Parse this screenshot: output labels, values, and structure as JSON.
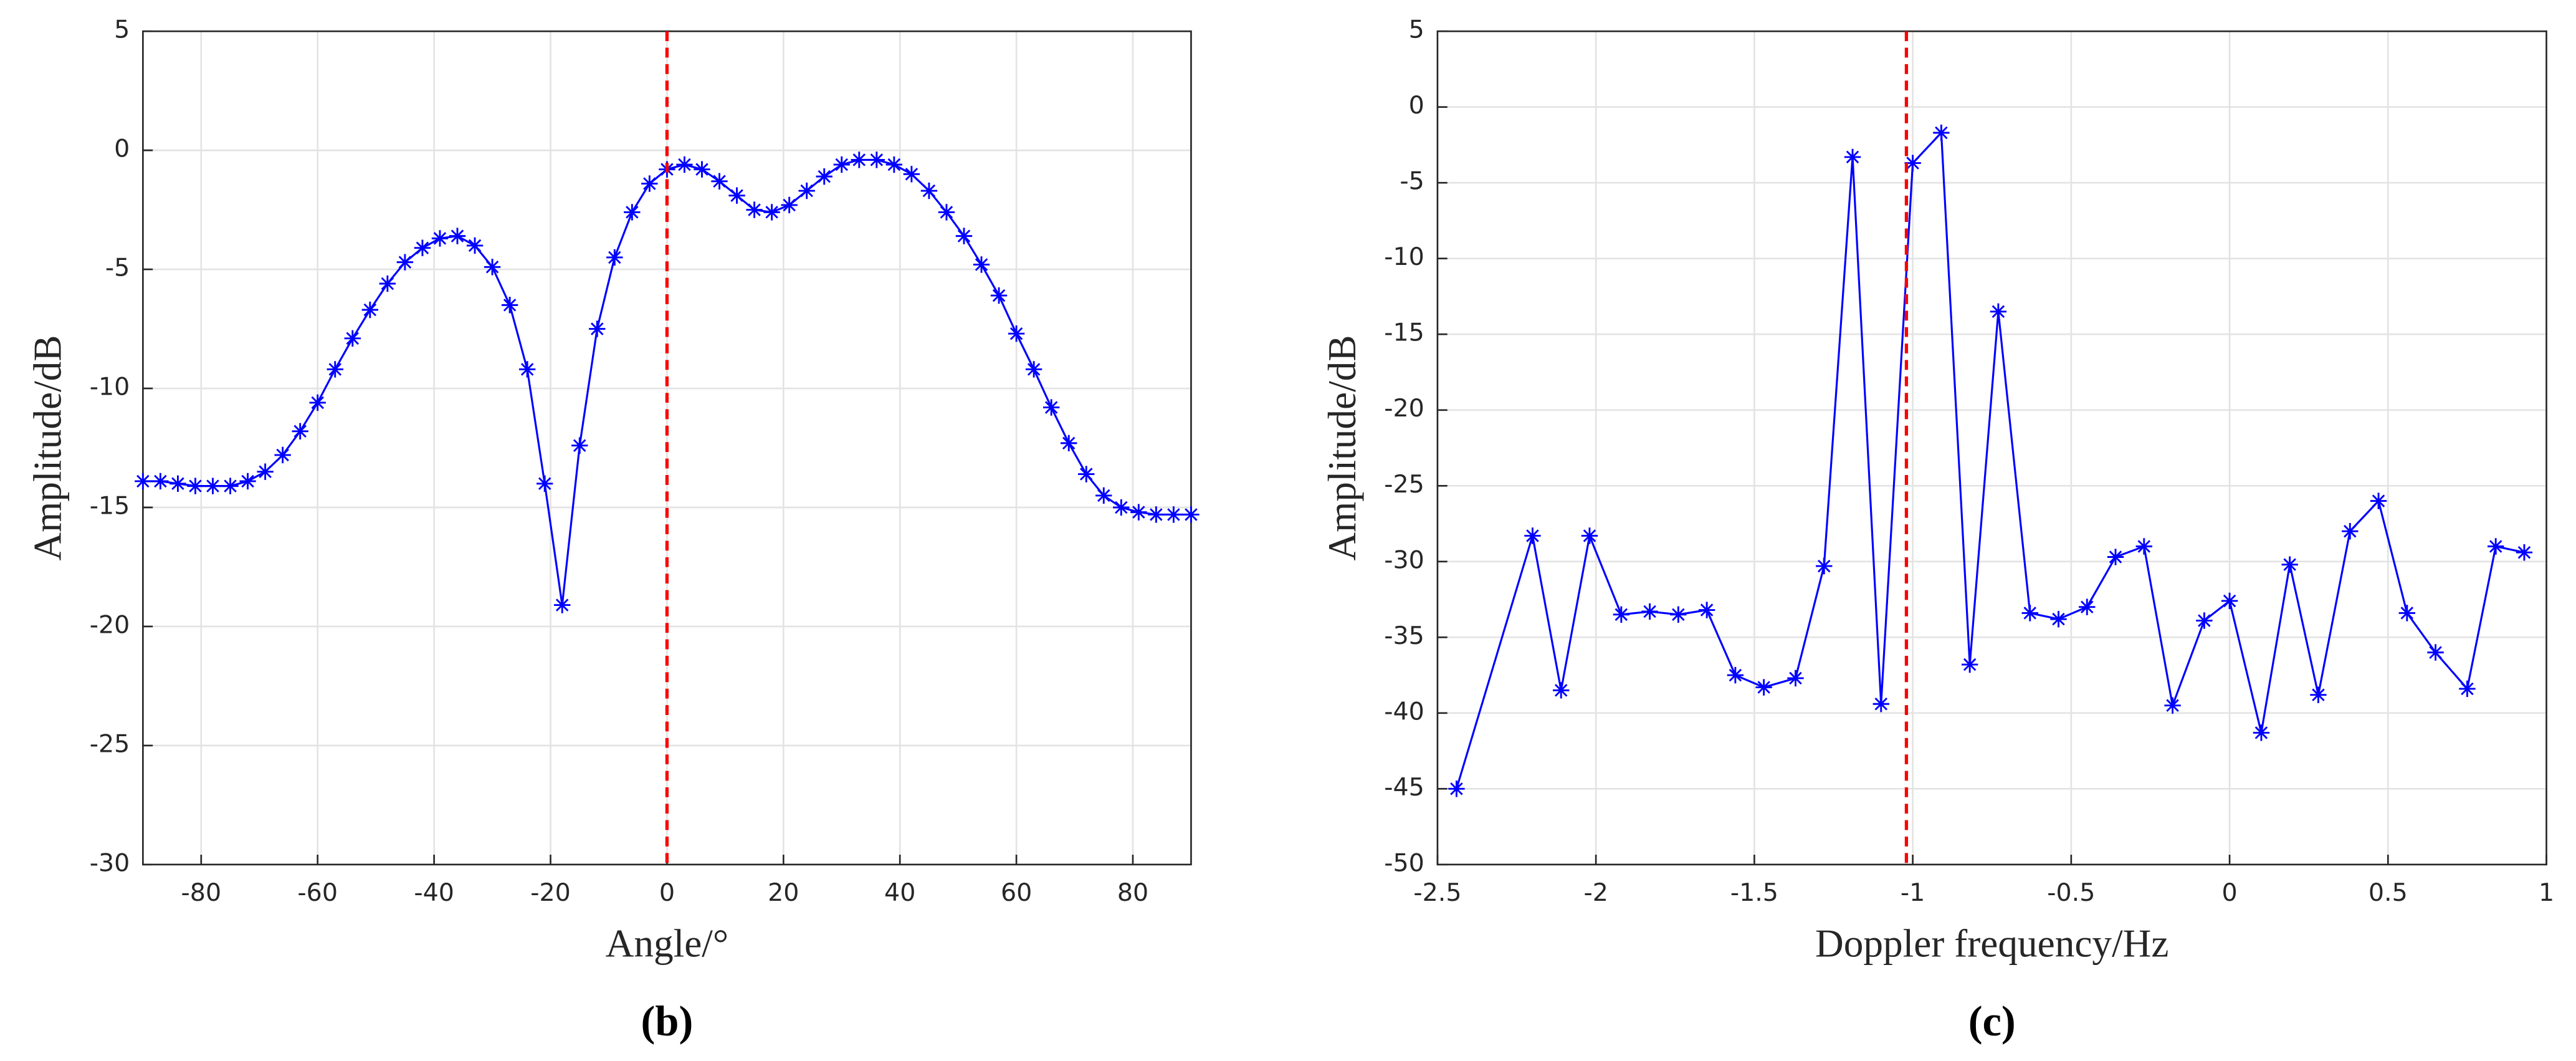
{
  "chart_data": [
    {
      "type": "line",
      "caption": "(b)",
      "x_label": "Angle/°",
      "y_label": "Amplitude/dB",
      "color": "#0000ff",
      "grid": true,
      "xlim": [
        -90,
        90
      ],
      "xticks": [
        -80,
        -60,
        -40,
        -20,
        0,
        20,
        40,
        60,
        80
      ],
      "ylim": [
        -30,
        5
      ],
      "yticks": [
        -30,
        -25,
        -20,
        -15,
        -10,
        -5,
        0,
        5
      ],
      "reference_line": {
        "x": 0,
        "color": "#ff0000"
      },
      "x": [
        -90,
        -87,
        -84,
        -81,
        -78,
        -75,
        -72,
        -69,
        -66,
        -63,
        -60,
        -57,
        -54,
        -51,
        -48,
        -45,
        -42,
        -39,
        -36,
        -33,
        -30,
        -27,
        -24,
        -21,
        -18,
        -15,
        -12,
        -9,
        -6,
        -3,
        0,
        3,
        6,
        9,
        12,
        15,
        18,
        21,
        24,
        27,
        30,
        33,
        36,
        39,
        42,
        45,
        48,
        51,
        54,
        57,
        60,
        63,
        66,
        69,
        72,
        75,
        78,
        81,
        84,
        87,
        90
      ],
      "values": [
        -13.9,
        -13.9,
        -14.0,
        -14.1,
        -14.1,
        -14.1,
        -13.9,
        -13.5,
        -12.8,
        -11.8,
        -10.6,
        -9.2,
        -7.9,
        -6.7,
        -5.6,
        -4.7,
        -4.1,
        -3.7,
        -3.6,
        -4.0,
        -4.9,
        -6.5,
        -9.2,
        -14.0,
        -19.1,
        -12.4,
        -7.5,
        -4.5,
        -2.6,
        -1.4,
        -0.8,
        -0.6,
        -0.8,
        -1.3,
        -1.9,
        -2.5,
        -2.6,
        -2.3,
        -1.7,
        -1.1,
        -0.6,
        -0.4,
        -0.4,
        -0.6,
        -1.0,
        -1.7,
        -2.6,
        -3.6,
        -4.8,
        -6.1,
        -7.7,
        -9.2,
        -10.8,
        -12.3,
        -13.6,
        -14.5,
        -15.0,
        -15.2,
        -15.3,
        -15.3,
        -15.3
      ]
    },
    {
      "type": "line",
      "caption": "(c)",
      "x_label": "Doppler frequency/Hz",
      "y_label": "Amplitude/dB",
      "color": "#0000ff",
      "grid": true,
      "xlim": [
        -2.5,
        1
      ],
      "xticks": [
        -2.5,
        -2,
        -1.5,
        -1,
        -0.5,
        0,
        0.5,
        1
      ],
      "ylim": [
        -50,
        5
      ],
      "yticks": [
        -50,
        -45,
        -40,
        -35,
        -30,
        -25,
        -20,
        -15,
        -10,
        -5,
        0,
        5
      ],
      "reference_line": {
        "x": -1.02,
        "color": "#ff0000"
      },
      "x": [
        -2.44,
        -2.2,
        -2.11,
        -2.02,
        -1.92,
        -1.83,
        -1.74,
        -1.65,
        -1.56,
        -1.47,
        -1.37,
        -1.28,
        -1.19,
        -1.1,
        -1.0,
        -0.91,
        -0.82,
        -0.73,
        -0.63,
        -0.54,
        -0.45,
        -0.36,
        -0.27,
        -0.18,
        -0.08,
        0.0,
        0.1,
        0.19,
        0.28,
        0.38,
        0.47,
        0.56,
        0.65,
        0.75,
        0.84,
        0.93
      ],
      "values": [
        -45,
        -28.3,
        -38.5,
        -28.3,
        -33.5,
        -33.3,
        -33.5,
        -33.2,
        -37.5,
        -38.3,
        -37.7,
        -30.3,
        -3.3,
        -39.4,
        -3.7,
        -1.7,
        -36.8,
        -13.5,
        -33.4,
        -33.8,
        -33,
        -29.7,
        -29,
        -39.5,
        -33.9,
        -32.6,
        -41.3,
        -30.2,
        -38.8,
        -28,
        -26,
        -33.4,
        -36,
        -38.4,
        -29,
        -29.4
      ]
    }
  ]
}
